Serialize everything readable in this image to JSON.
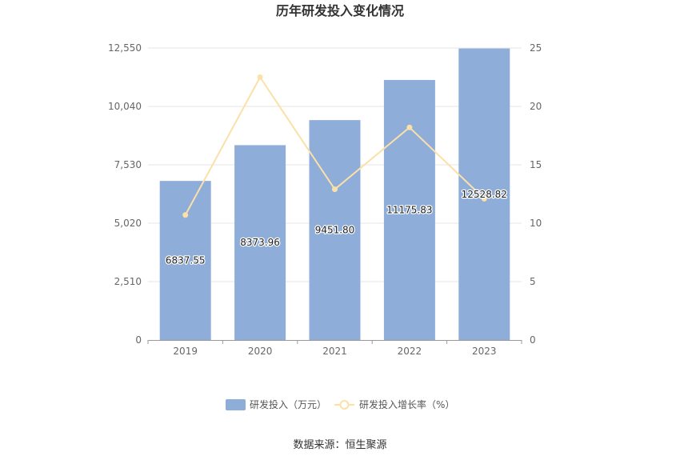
{
  "chart_data": {
    "type": "bar",
    "title": "历年研发投入变化情况",
    "categories": [
      "2019",
      "2020",
      "2021",
      "2022",
      "2023"
    ],
    "series": [
      {
        "name": "研发投入（万元）",
        "type": "bar",
        "axis": "left",
        "values": [
          6837.55,
          8373.96,
          9451.8,
          11175.83,
          12528.82
        ],
        "labels": [
          "6837.55",
          "8373.96",
          "9451.80",
          "11175.83",
          "12528.82"
        ],
        "color": "#8eadd9"
      },
      {
        "name": "研发投入增长率（%）",
        "type": "line",
        "axis": "right",
        "values": [
          10.7,
          22.5,
          12.9,
          18.2,
          12.1
        ],
        "color": "#fbe0a8"
      }
    ],
    "y_left": {
      "ticks": [
        "0",
        "2,510",
        "5,020",
        "7,530",
        "10,040",
        "12,550"
      ],
      "range": [
        0,
        12550
      ]
    },
    "y_right": {
      "ticks": [
        "0",
        "5",
        "10",
        "15",
        "20",
        "25"
      ],
      "range": [
        0,
        25
      ]
    },
    "grid": true,
    "legend_position": "bottom"
  },
  "source": "数据来源：恒生聚源"
}
